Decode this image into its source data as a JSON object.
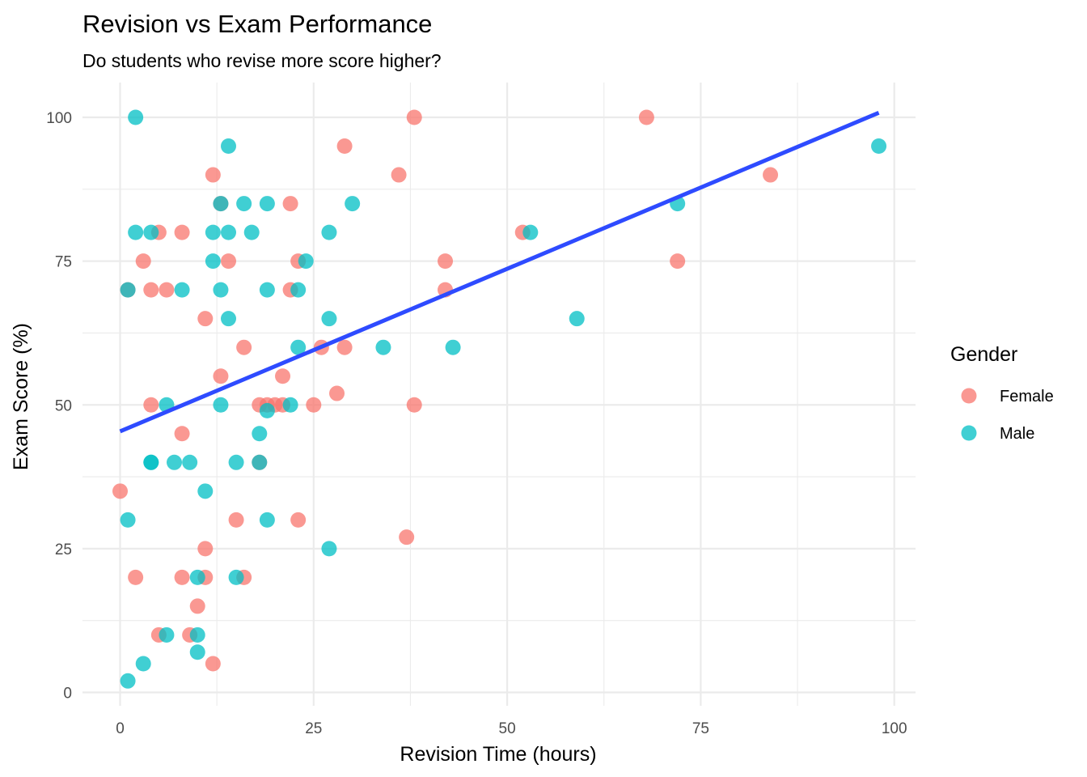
{
  "chart_data": {
    "type": "scatter",
    "title": "Revision vs Exam Performance",
    "subtitle": "Do students who revise more score higher?",
    "xlabel": "Revision Time (hours)",
    "ylabel": "Exam Score (%)",
    "xlim": [
      -2,
      103
    ],
    "ylim": [
      -2,
      105
    ],
    "x_ticks": [
      0,
      25,
      50,
      75,
      100
    ],
    "x_tick_labels": [
      "0",
      "25",
      "50",
      "75",
      "100"
    ],
    "y_ticks": [
      0,
      25,
      50,
      75,
      100
    ],
    "y_tick_labels": [
      "0",
      "25",
      "50",
      "75",
      "100"
    ],
    "x_minor_ticks": [
      12.5,
      37.5,
      62.5,
      87.5
    ],
    "y_minor_ticks": [
      12.5,
      37.5,
      62.5,
      87.5
    ],
    "grid": true,
    "legend": {
      "title": "Gender",
      "placement": "right",
      "entries": [
        {
          "label": "Female",
          "color": "#F8766D"
        },
        {
          "label": "Male",
          "color": "#00BFC4"
        }
      ]
    },
    "trend_line": {
      "type": "linear",
      "color": "#2E4BFF",
      "x": [
        0,
        98
      ],
      "y": [
        45.4,
        100.8
      ]
    },
    "series": [
      {
        "name": "Female",
        "color": "#F8766D",
        "points": [
          [
            0,
            35
          ],
          [
            1,
            70
          ],
          [
            2,
            20
          ],
          [
            3,
            75
          ],
          [
            4,
            70
          ],
          [
            4,
            50
          ],
          [
            5,
            80
          ],
          [
            5,
            10
          ],
          [
            6,
            70
          ],
          [
            8,
            80
          ],
          [
            8,
            45
          ],
          [
            8,
            20
          ],
          [
            9,
            10
          ],
          [
            10,
            15
          ],
          [
            11,
            65
          ],
          [
            11,
            25
          ],
          [
            11,
            20
          ],
          [
            12,
            90
          ],
          [
            12,
            5
          ],
          [
            13,
            85
          ],
          [
            13,
            55
          ],
          [
            14,
            75
          ],
          [
            15,
            30
          ],
          [
            16,
            60
          ],
          [
            16,
            20
          ],
          [
            18,
            50
          ],
          [
            18,
            40
          ],
          [
            19,
            50
          ],
          [
            20,
            50
          ],
          [
            21,
            55
          ],
          [
            21,
            50
          ],
          [
            22,
            85
          ],
          [
            22,
            70
          ],
          [
            23,
            75
          ],
          [
            23,
            30
          ],
          [
            25,
            50
          ],
          [
            26,
            60
          ],
          [
            28,
            52
          ],
          [
            29,
            95
          ],
          [
            29,
            60
          ],
          [
            36,
            90
          ],
          [
            37,
            27
          ],
          [
            38,
            100
          ],
          [
            38,
            50
          ],
          [
            42,
            75
          ],
          [
            42,
            70
          ],
          [
            52,
            80
          ],
          [
            68,
            100
          ],
          [
            72,
            75
          ],
          [
            84,
            90
          ]
        ]
      },
      {
        "name": "Male",
        "color": "#00BFC4",
        "points": [
          [
            1,
            70
          ],
          [
            1,
            30
          ],
          [
            1,
            2
          ],
          [
            2,
            100
          ],
          [
            2,
            80
          ],
          [
            3,
            5
          ],
          [
            4,
            80
          ],
          [
            4,
            40
          ],
          [
            4,
            40
          ],
          [
            6,
            50
          ],
          [
            6,
            10
          ],
          [
            7,
            40
          ],
          [
            8,
            70
          ],
          [
            9,
            40
          ],
          [
            10,
            20
          ],
          [
            10,
            10
          ],
          [
            10,
            7
          ],
          [
            11,
            35
          ],
          [
            12,
            80
          ],
          [
            12,
            75
          ],
          [
            13,
            85
          ],
          [
            13,
            70
          ],
          [
            13,
            50
          ],
          [
            14,
            95
          ],
          [
            14,
            80
          ],
          [
            14,
            65
          ],
          [
            15,
            40
          ],
          [
            15,
            20
          ],
          [
            16,
            85
          ],
          [
            17,
            80
          ],
          [
            18,
            45
          ],
          [
            18,
            40
          ],
          [
            19,
            85
          ],
          [
            19,
            70
          ],
          [
            19,
            49
          ],
          [
            19,
            30
          ],
          [
            22,
            50
          ],
          [
            23,
            70
          ],
          [
            23,
            60
          ],
          [
            24,
            75
          ],
          [
            27,
            80
          ],
          [
            27,
            65
          ],
          [
            27,
            25
          ],
          [
            30,
            85
          ],
          [
            34,
            60
          ],
          [
            43,
            60
          ],
          [
            53,
            80
          ],
          [
            59,
            65
          ],
          [
            72,
            85
          ],
          [
            98,
            95
          ]
        ]
      }
    ]
  }
}
